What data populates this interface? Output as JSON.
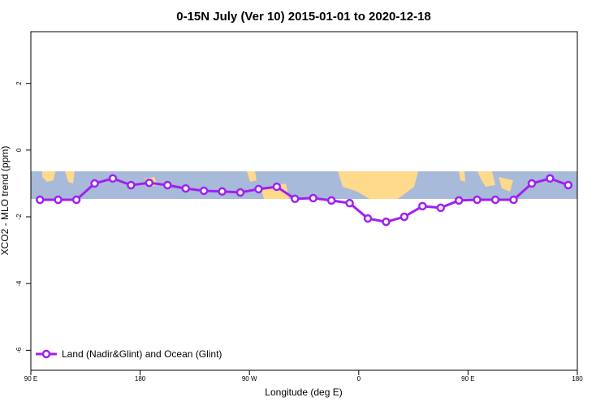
{
  "chart_data": {
    "type": "line",
    "title": "0-15N July (Ver 10)   2015-01-01 to 2020-12-18",
    "x_label": "Longitude (deg E)",
    "y_label": "XCO2 - MLO trend (ppm)",
    "x": [
      97.5,
      112.5,
      127.5,
      142.5,
      157.5,
      172.5,
      187.5,
      202.5,
      217.5,
      232.5,
      247.5,
      262.5,
      277.5,
      292.5,
      307.5,
      322.5,
      337.5,
      352.5,
      367.5,
      382.5,
      397.5,
      412.5,
      427.5,
      442.5,
      457.5,
      472.5,
      487.5,
      502.5,
      517.5,
      532.5
    ],
    "series": [
      {
        "name": "Land (Nadir&Glint) and Ocean (Glint)",
        "color": "#a020f0",
        "values": [
          -1.49,
          -1.49,
          -1.49,
          -1.0,
          -0.85,
          -1.05,
          -0.98,
          -1.05,
          -1.15,
          -1.22,
          -1.24,
          -1.27,
          -1.17,
          -1.1,
          -1.46,
          -1.44,
          -1.51,
          -1.59,
          -2.05,
          -2.15,
          -2.0,
          -1.68,
          -1.73,
          -1.51,
          -1.49,
          -1.49,
          -1.49,
          -1.0,
          -0.85,
          -1.05
        ]
      }
    ],
    "xlim": [
      90,
      540
    ],
    "xticks": [
      {
        "value": 90,
        "label": "90 E"
      },
      180,
      {
        "value": 270,
        "label": "90 W"
      },
      {
        "value": 360,
        "label": "0"
      },
      {
        "value": 450,
        "label": "90 E"
      },
      {
        "value": 540,
        "label": "180"
      }
    ],
    "ylim": [
      -6.6,
      3.55
    ],
    "yticks": [
      2,
      0,
      -2,
      -4,
      -6
    ],
    "legend": "bottom-left"
  }
}
